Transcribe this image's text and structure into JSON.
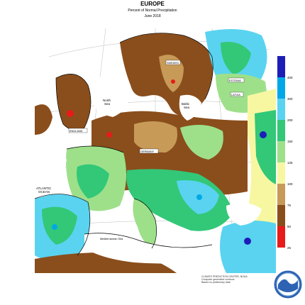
{
  "header": {
    "region": "EUROPE",
    "subtitle": "Percent of Normal Precipitation",
    "period": "June 2018"
  },
  "legend": {
    "items": [
      {
        "label": "400",
        "color": "#1d1db8"
      },
      {
        "label": "300",
        "color": "#00a8e8"
      },
      {
        "label": "200",
        "color": "#5ad3f0"
      },
      {
        "label": "150",
        "color": "#32c878"
      },
      {
        "label": "125",
        "color": "#9ee08a"
      },
      {
        "label": "100",
        "color": "#f7f7a2"
      },
      {
        "label": "75",
        "color": "#c79a58"
      },
      {
        "label": "50",
        "color": "#8a4e1c"
      },
      {
        "label": "25",
        "color": "#e81a1a"
      }
    ]
  },
  "labels": {
    "north_sea": "North\nSea",
    "baltic_sea": "Baltic\nSea",
    "atlantic": "ATLANTIC\nOCEAN",
    "med": "Mediterranean Sea",
    "sweden": "SWEDEN",
    "estonia": "ESTONIA",
    "latvia": "LATVIA",
    "germany": "GERMANY",
    "england": "ENGLAND"
  },
  "credit": {
    "line1": "CLIMATE PREDICTION CENTER, NOAA",
    "line2": "Computer generated contours",
    "line3": "Based on preliminary data"
  },
  "logo": {
    "icon": "noaa-logo",
    "color": "#2e63b4"
  }
}
